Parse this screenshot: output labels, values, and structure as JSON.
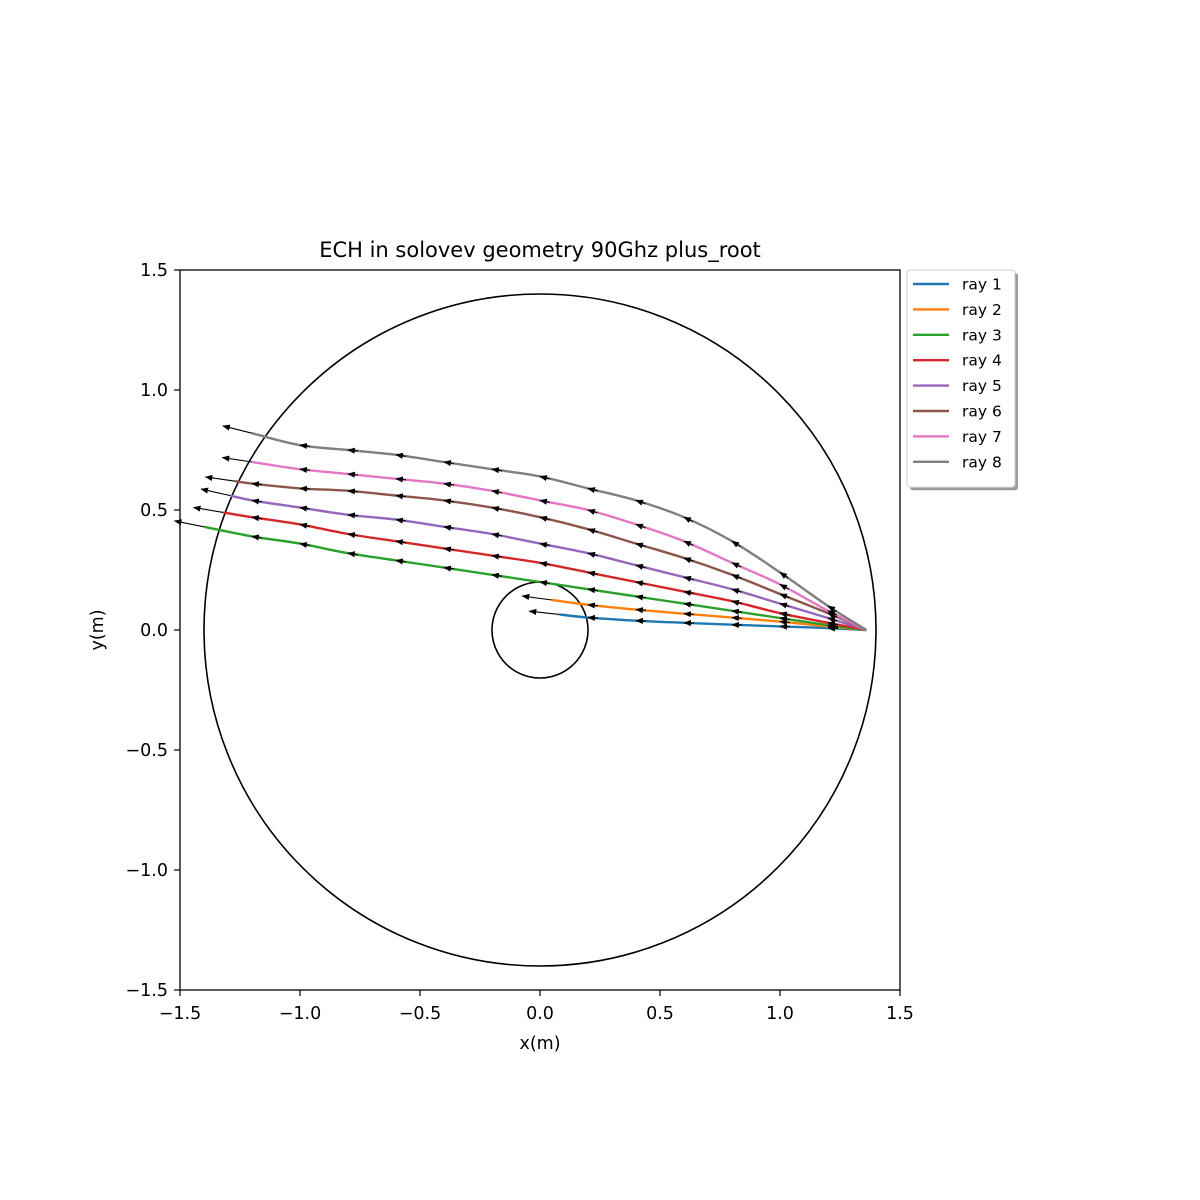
{
  "chart_data": {
    "type": "line",
    "title": "ECH in solovev geometry 90Ghz  plus_root",
    "xlabel": "x(m)",
    "ylabel": "y(m)",
    "xlim": [
      -1.5,
      1.5
    ],
    "ylim": [
      -1.5,
      1.5
    ],
    "xticks": [
      "−1.5",
      "−1.0",
      "−0.5",
      "0.0",
      "0.5",
      "1.0",
      "1.5"
    ],
    "yticks": [
      "−1.5",
      "−1.0",
      "−0.5",
      "0.0",
      "0.5",
      "1.0",
      "1.5"
    ],
    "xtick_values": [
      -1.5,
      -1.0,
      -0.5,
      0.0,
      0.5,
      1.0,
      1.5
    ],
    "ytick_values": [
      -1.5,
      -1.0,
      -0.5,
      0.0,
      0.5,
      1.0,
      1.5
    ],
    "grid": false,
    "legend_position": "outside-top-right",
    "circles": [
      {
        "name": "outer boundary",
        "cx": 0.0,
        "cy": 0.0,
        "r": 1.4,
        "color": "#000000"
      },
      {
        "name": "inner boundary",
        "cx": 0.0,
        "cy": 0.0,
        "r": 0.2,
        "color": "#000000"
      }
    ],
    "series": [
      {
        "name": "ray 1",
        "color": "#1f77b4",
        "x": [
          1.36,
          1.2,
          1.0,
          0.8,
          0.6,
          0.4,
          0.2,
          0.08
        ],
        "y": [
          0.0,
          0.008,
          0.015,
          0.022,
          0.03,
          0.039,
          0.052,
          0.065
        ]
      },
      {
        "name": "ray 2",
        "color": "#ff7f0e",
        "x": [
          1.36,
          1.2,
          1.0,
          0.8,
          0.6,
          0.4,
          0.2,
          0.05
        ],
        "y": [
          0.0,
          0.015,
          0.035,
          0.052,
          0.068,
          0.085,
          0.105,
          0.125
        ]
      },
      {
        "name": "ray 3",
        "color": "#2ca02c",
        "x": [
          1.36,
          1.2,
          1.0,
          0.8,
          0.6,
          0.4,
          0.2,
          0.0,
          -0.2,
          -0.4,
          -0.6,
          -0.8,
          -1.0,
          -1.2,
          -1.4
        ],
        "y": [
          0.0,
          0.02,
          0.05,
          0.08,
          0.11,
          0.14,
          0.17,
          0.2,
          0.23,
          0.26,
          0.29,
          0.32,
          0.36,
          0.39,
          0.43
        ]
      },
      {
        "name": "ray 4",
        "color": "#d62728",
        "x": [
          1.36,
          1.2,
          1.0,
          0.8,
          0.6,
          0.4,
          0.2,
          0.0,
          -0.2,
          -0.4,
          -0.6,
          -0.8,
          -1.0,
          -1.2,
          -1.32
        ],
        "y": [
          0.0,
          0.03,
          0.07,
          0.12,
          0.16,
          0.2,
          0.24,
          0.28,
          0.31,
          0.34,
          0.37,
          0.4,
          0.44,
          0.47,
          0.49
        ]
      },
      {
        "name": "ray 5",
        "color": "#9467bd",
        "x": [
          1.36,
          1.2,
          1.0,
          0.8,
          0.6,
          0.4,
          0.2,
          0.0,
          -0.2,
          -0.4,
          -0.6,
          -0.8,
          -1.0,
          -1.2,
          -1.29
        ],
        "y": [
          0.0,
          0.05,
          0.11,
          0.17,
          0.22,
          0.27,
          0.32,
          0.36,
          0.4,
          0.43,
          0.46,
          0.48,
          0.51,
          0.54,
          0.56
        ]
      },
      {
        "name": "ray 6",
        "color": "#8c564b",
        "x": [
          1.36,
          1.2,
          1.0,
          0.8,
          0.6,
          0.4,
          0.2,
          0.0,
          -0.2,
          -0.4,
          -0.6,
          -0.8,
          -1.0,
          -1.2,
          -1.27
        ],
        "y": [
          0.0,
          0.07,
          0.15,
          0.23,
          0.3,
          0.36,
          0.42,
          0.47,
          0.51,
          0.54,
          0.56,
          0.58,
          0.59,
          0.61,
          0.62
        ]
      },
      {
        "name": "ray 7",
        "color": "#e377c2",
        "x": [
          1.36,
          1.2,
          1.0,
          0.8,
          0.6,
          0.4,
          0.2,
          0.0,
          -0.2,
          -0.4,
          -0.6,
          -0.8,
          -1.0,
          -1.2
        ],
        "y": [
          0.0,
          0.08,
          0.19,
          0.28,
          0.37,
          0.44,
          0.5,
          0.54,
          0.58,
          0.61,
          0.63,
          0.65,
          0.67,
          0.7
        ]
      },
      {
        "name": "ray 8",
        "color": "#7f7f7f",
        "x": [
          1.36,
          1.2,
          1.0,
          0.8,
          0.6,
          0.4,
          0.2,
          0.0,
          -0.2,
          -0.4,
          -0.6,
          -0.8,
          -1.0,
          -1.2
        ],
        "y": [
          0.0,
          0.1,
          0.24,
          0.37,
          0.47,
          0.54,
          0.59,
          0.64,
          0.67,
          0.7,
          0.73,
          0.75,
          0.77,
          0.82
        ]
      }
    ],
    "arrows": {
      "color": "#000000",
      "every": 1,
      "note": ""
    }
  }
}
